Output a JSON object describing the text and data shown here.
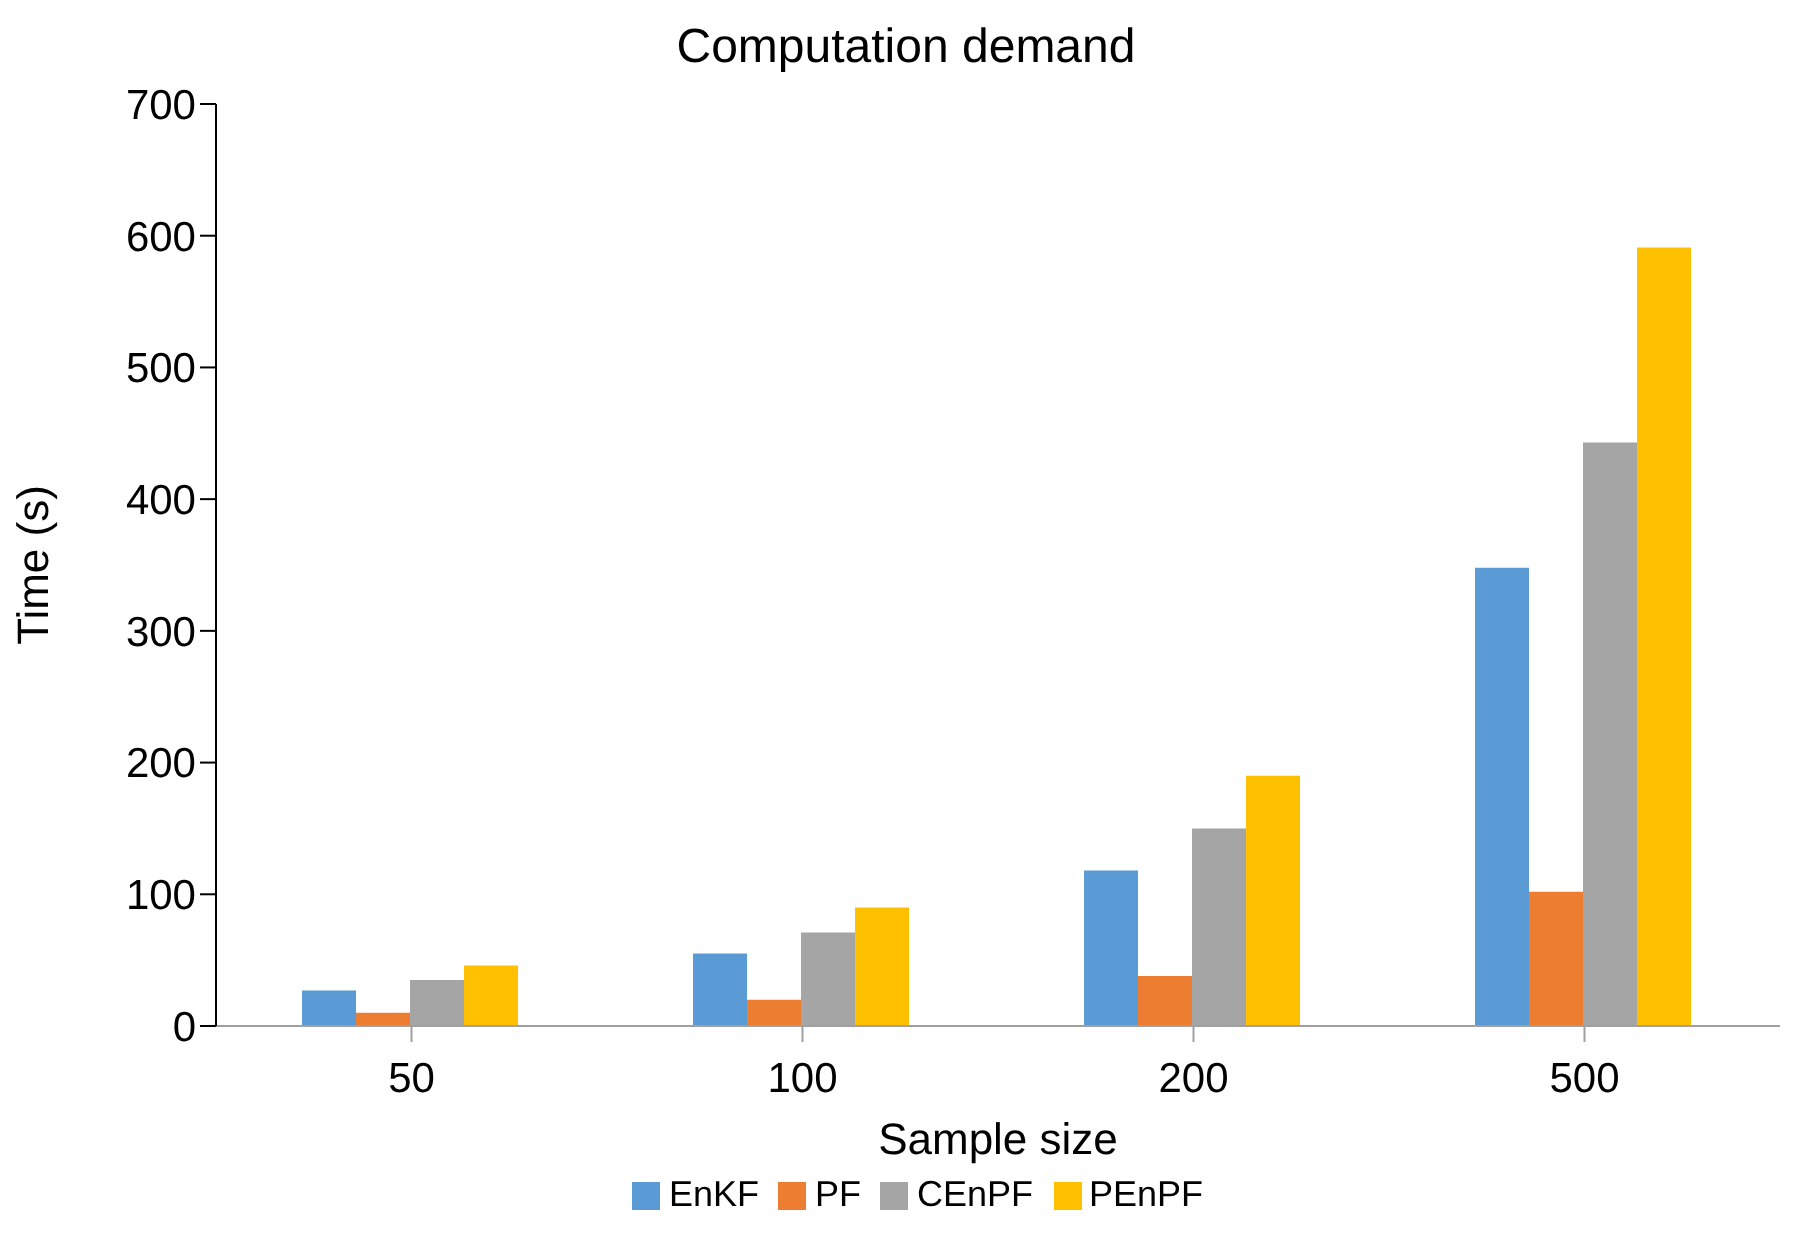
{
  "chart_data": {
    "type": "bar",
    "title": "Computation demand",
    "xlabel": "Sample size",
    "ylabel": "Time (s)",
    "categories": [
      "50",
      "100",
      "200",
      "500"
    ],
    "series": [
      {
        "name": "EnKF",
        "color": "#5b9bd5",
        "values": [
          27,
          55,
          118,
          348
        ]
      },
      {
        "name": "PF",
        "color": "#ed7d31",
        "values": [
          10,
          20,
          38,
          102
        ]
      },
      {
        "name": "CEnPF",
        "color": "#a5a5a5",
        "values": [
          35,
          71,
          150,
          443
        ]
      },
      {
        "name": "PEnPF",
        "color": "#ffc000",
        "values": [
          46,
          90,
          190,
          591
        ]
      }
    ],
    "ylim": [
      0,
      700
    ],
    "yticks": [
      0,
      100,
      200,
      300,
      400,
      500,
      600,
      700
    ],
    "grid": false,
    "legend": "bottom"
  }
}
